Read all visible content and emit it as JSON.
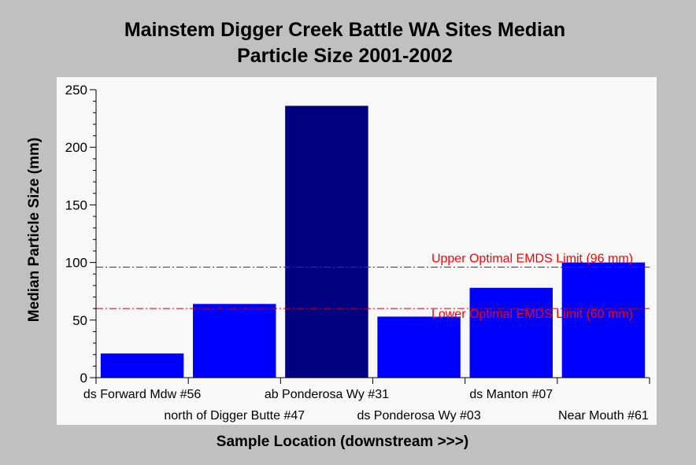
{
  "chart_data": {
    "type": "bar",
    "title_lines": [
      "Mainstem Digger Creek Battle WA Sites Median",
      "Particle Size 2001-2002"
    ],
    "xlabel": "Sample Location (downstream >>>)",
    "ylabel": "Median Particle Size (mm)",
    "ylim": [
      0,
      250
    ],
    "yticks": [
      0,
      50,
      100,
      150,
      200,
      250
    ],
    "grid": false,
    "categories": [
      "ds Forward Mdw #56",
      "north of Digger Butte #47",
      "ab Ponderosa Wy #31",
      "ds Ponderosa Wy #03",
      "ds Manton #07",
      "Near Mouth #61"
    ],
    "values": [
      21,
      64,
      236,
      53,
      78,
      100
    ],
    "bar_colors": [
      "#0000ff",
      "#0000ff",
      "#000080",
      "#0000ff",
      "#0000ff",
      "#0000ff"
    ],
    "reference_lines": [
      {
        "label": "Upper Optimal EMDS Limit (96 mm)",
        "value": 96,
        "color": "#cc0000"
      },
      {
        "label": "Lower Optimal EMDS Limit (60 mm)",
        "value": 60,
        "color": "#cc0000"
      }
    ],
    "colors": {
      "background": "#c0c0c0",
      "plot_area": "#f8f8f8",
      "ref_text": "#ff0000"
    }
  }
}
